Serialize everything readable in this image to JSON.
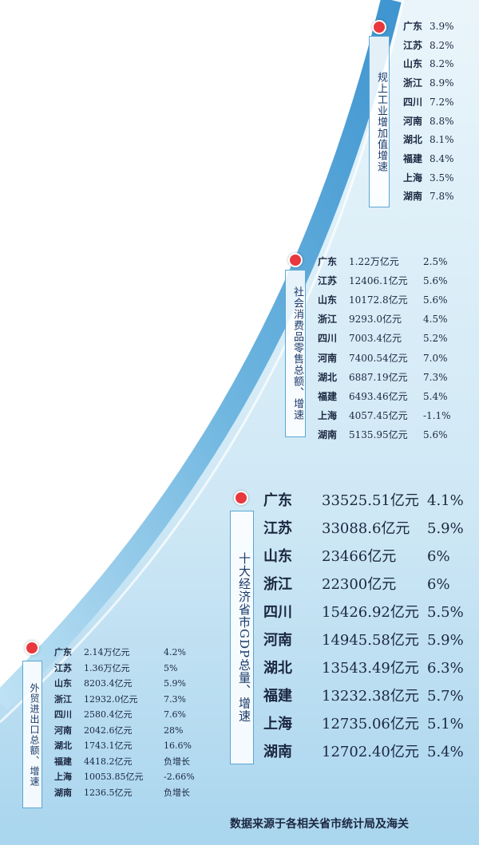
{
  "sections": [
    {
      "label": "规上工业增加值增速",
      "rows": [
        [
          "广东",
          "3.9%"
        ],
        [
          "江苏",
          "8.2%"
        ],
        [
          "山东",
          "8.2%"
        ],
        [
          "浙江",
          "8.9%"
        ],
        [
          "四川",
          "7.2%"
        ],
        [
          "河南",
          "8.8%"
        ],
        [
          "湖北",
          "8.1%"
        ],
        [
          "福建",
          "8.4%"
        ],
        [
          "上海",
          "3.5%"
        ],
        [
          "湖南",
          "7.8%"
        ]
      ]
    },
    {
      "label": "社会消费品零售总额、增速",
      "rows": [
        [
          "广东",
          "1.22万亿元",
          "2.5%"
        ],
        [
          "江苏",
          "12406.1亿元",
          "5.6%"
        ],
        [
          "山东",
          "10172.8亿元",
          "5.6%"
        ],
        [
          "浙江",
          "9293.0亿元",
          "4.5%"
        ],
        [
          "四川",
          "7003.4亿元",
          "5.2%"
        ],
        [
          "河南",
          "7400.54亿元",
          "7.0%"
        ],
        [
          "湖北",
          "6887.19亿元",
          "7.3%"
        ],
        [
          "福建",
          "6493.46亿元",
          "5.4%"
        ],
        [
          "上海",
          "4057.45亿元",
          "-1.1%"
        ],
        [
          "湖南",
          "5135.95亿元",
          "5.6%"
        ]
      ]
    },
    {
      "label": "十大经济省市GDP总量、增速",
      "rows": [
        [
          "广东",
          "33525.51亿元",
          "4.1%"
        ],
        [
          "江苏",
          "33088.6亿元",
          "5.9%"
        ],
        [
          "山东",
          "23466亿元",
          "6%"
        ],
        [
          "浙江",
          "22300亿元",
          "6%"
        ],
        [
          "四川",
          "15426.92亿元",
          "5.5%"
        ],
        [
          "河南",
          "14945.58亿元",
          "5.9%"
        ],
        [
          "湖北",
          "13543.49亿元",
          "6.3%"
        ],
        [
          "福建",
          "13232.38亿元",
          "5.7%"
        ],
        [
          "上海",
          "12735.06亿元",
          "5.1%"
        ],
        [
          "湖南",
          "12702.40亿元",
          "5.4%"
        ]
      ]
    },
    {
      "label": "外贸进出口总额、增速",
      "rows": [
        [
          "广东",
          "2.14万亿元",
          "4.2%"
        ],
        [
          "江苏",
          "1.36万亿元",
          "5%"
        ],
        [
          "山东",
          "8203.4亿元",
          "5.9%"
        ],
        [
          "浙江",
          "12932.0亿元",
          "7.3%"
        ],
        [
          "四川",
          "2580.4亿元",
          "7.6%"
        ],
        [
          "河南",
          "2042.6亿元",
          "28%"
        ],
        [
          "湖北",
          "1743.1亿元",
          "16.6%"
        ],
        [
          "福建",
          "4418.2亿元",
          "负增长"
        ],
        [
          "上海",
          "10053.85亿元",
          "-2.66%"
        ],
        [
          "湖南",
          "1236.5亿元",
          "负增长"
        ]
      ]
    }
  ],
  "footer": "数据来源于各相关省市统计局及海关"
}
